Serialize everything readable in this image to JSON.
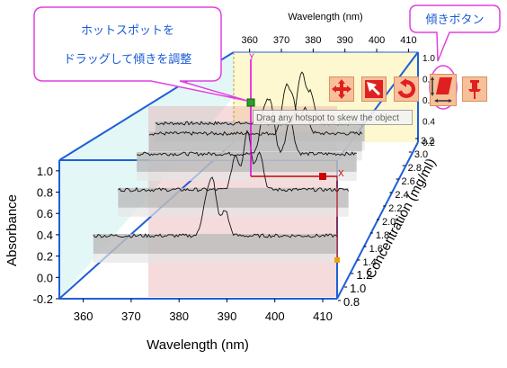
{
  "callouts": {
    "hotspot": {
      "line1": "ホットスポットを",
      "line2": "ドラッグして傾きを調整"
    },
    "skew_button": {
      "label": "傾きボタン"
    }
  },
  "tooltip": {
    "text": "Drag any hotspot to skew the object"
  },
  "hotspots": {
    "y_label": "Y",
    "x_label": "X"
  },
  "toolbar": {
    "tools": [
      {
        "name": "move-tool",
        "icon": "four-arrows-icon"
      },
      {
        "name": "resize-tool",
        "icon": "resize-arrow-icon"
      },
      {
        "name": "rotate-tool",
        "icon": "rotate-icon"
      },
      {
        "name": "skew-tool",
        "icon": "skew-icon"
      },
      {
        "name": "pin-tool",
        "icon": "pushpin-icon"
      }
    ]
  },
  "colors": {
    "accent": "#1a5bd6",
    "callout_border": "#e040e0",
    "hotspot": "#d00000",
    "frame": "#1f5fd8"
  },
  "chart_data": {
    "type": "line",
    "subtype": "3d-waterfall",
    "xlabel": "Wavelength (nm)",
    "top_xlabel": "Wavelength (nm)",
    "ylabel": "Absorbance",
    "zlabel": "Concentration (mg/ml)",
    "x_ticks": [
      "360",
      "370",
      "380",
      "390",
      "400",
      "410"
    ],
    "top_x_ticks": [
      "360",
      "370",
      "380",
      "390",
      "400",
      "410"
    ],
    "y_ticks": [
      "-0.2",
      "0.0",
      "0.2",
      "0.4",
      "0.6",
      "0.8",
      "1.0"
    ],
    "right_y_ticks": [
      "0.2",
      "0.4",
      "0.6",
      "0.8",
      "1.0"
    ],
    "z_ticks": [
      "0.8",
      "1.0",
      "1.2",
      "1.4",
      "1.6",
      "1.8",
      "2.0",
      "2.2",
      "2.4",
      "2.6",
      "2.8",
      "3.0",
      "3.2"
    ],
    "xlim": [
      355,
      413
    ],
    "ylim": [
      -0.2,
      1.1
    ],
    "series": [
      {
        "concentration": 1.2,
        "baseline": 0.2,
        "peaks": [
          [
            383,
            0.38
          ],
          [
            384.5,
            0.6
          ],
          [
            387,
            0.3
          ]
        ]
      },
      {
        "concentration": 2.0,
        "baseline": 0.25,
        "peaks": [
          [
            384,
            0.4
          ],
          [
            386.5,
            0.7
          ],
          [
            389,
            0.45
          ]
        ]
      },
      {
        "concentration": 2.6,
        "baseline": 0.3,
        "peaks": [
          [
            386,
            0.45
          ],
          [
            387.5,
            0.55
          ],
          [
            391.5,
            0.4
          ]
        ]
      },
      {
        "concentration": 3.0,
        "baseline": 0.3,
        "peaks": [
          [
            388,
            0.5
          ],
          [
            389.5,
            0.35
          ],
          [
            392,
            0.3
          ]
        ]
      },
      {
        "concentration": 3.2,
        "baseline": 0.3,
        "peaks": [
          [
            390,
            0.6
          ],
          [
            392,
            0.35
          ]
        ]
      }
    ]
  }
}
